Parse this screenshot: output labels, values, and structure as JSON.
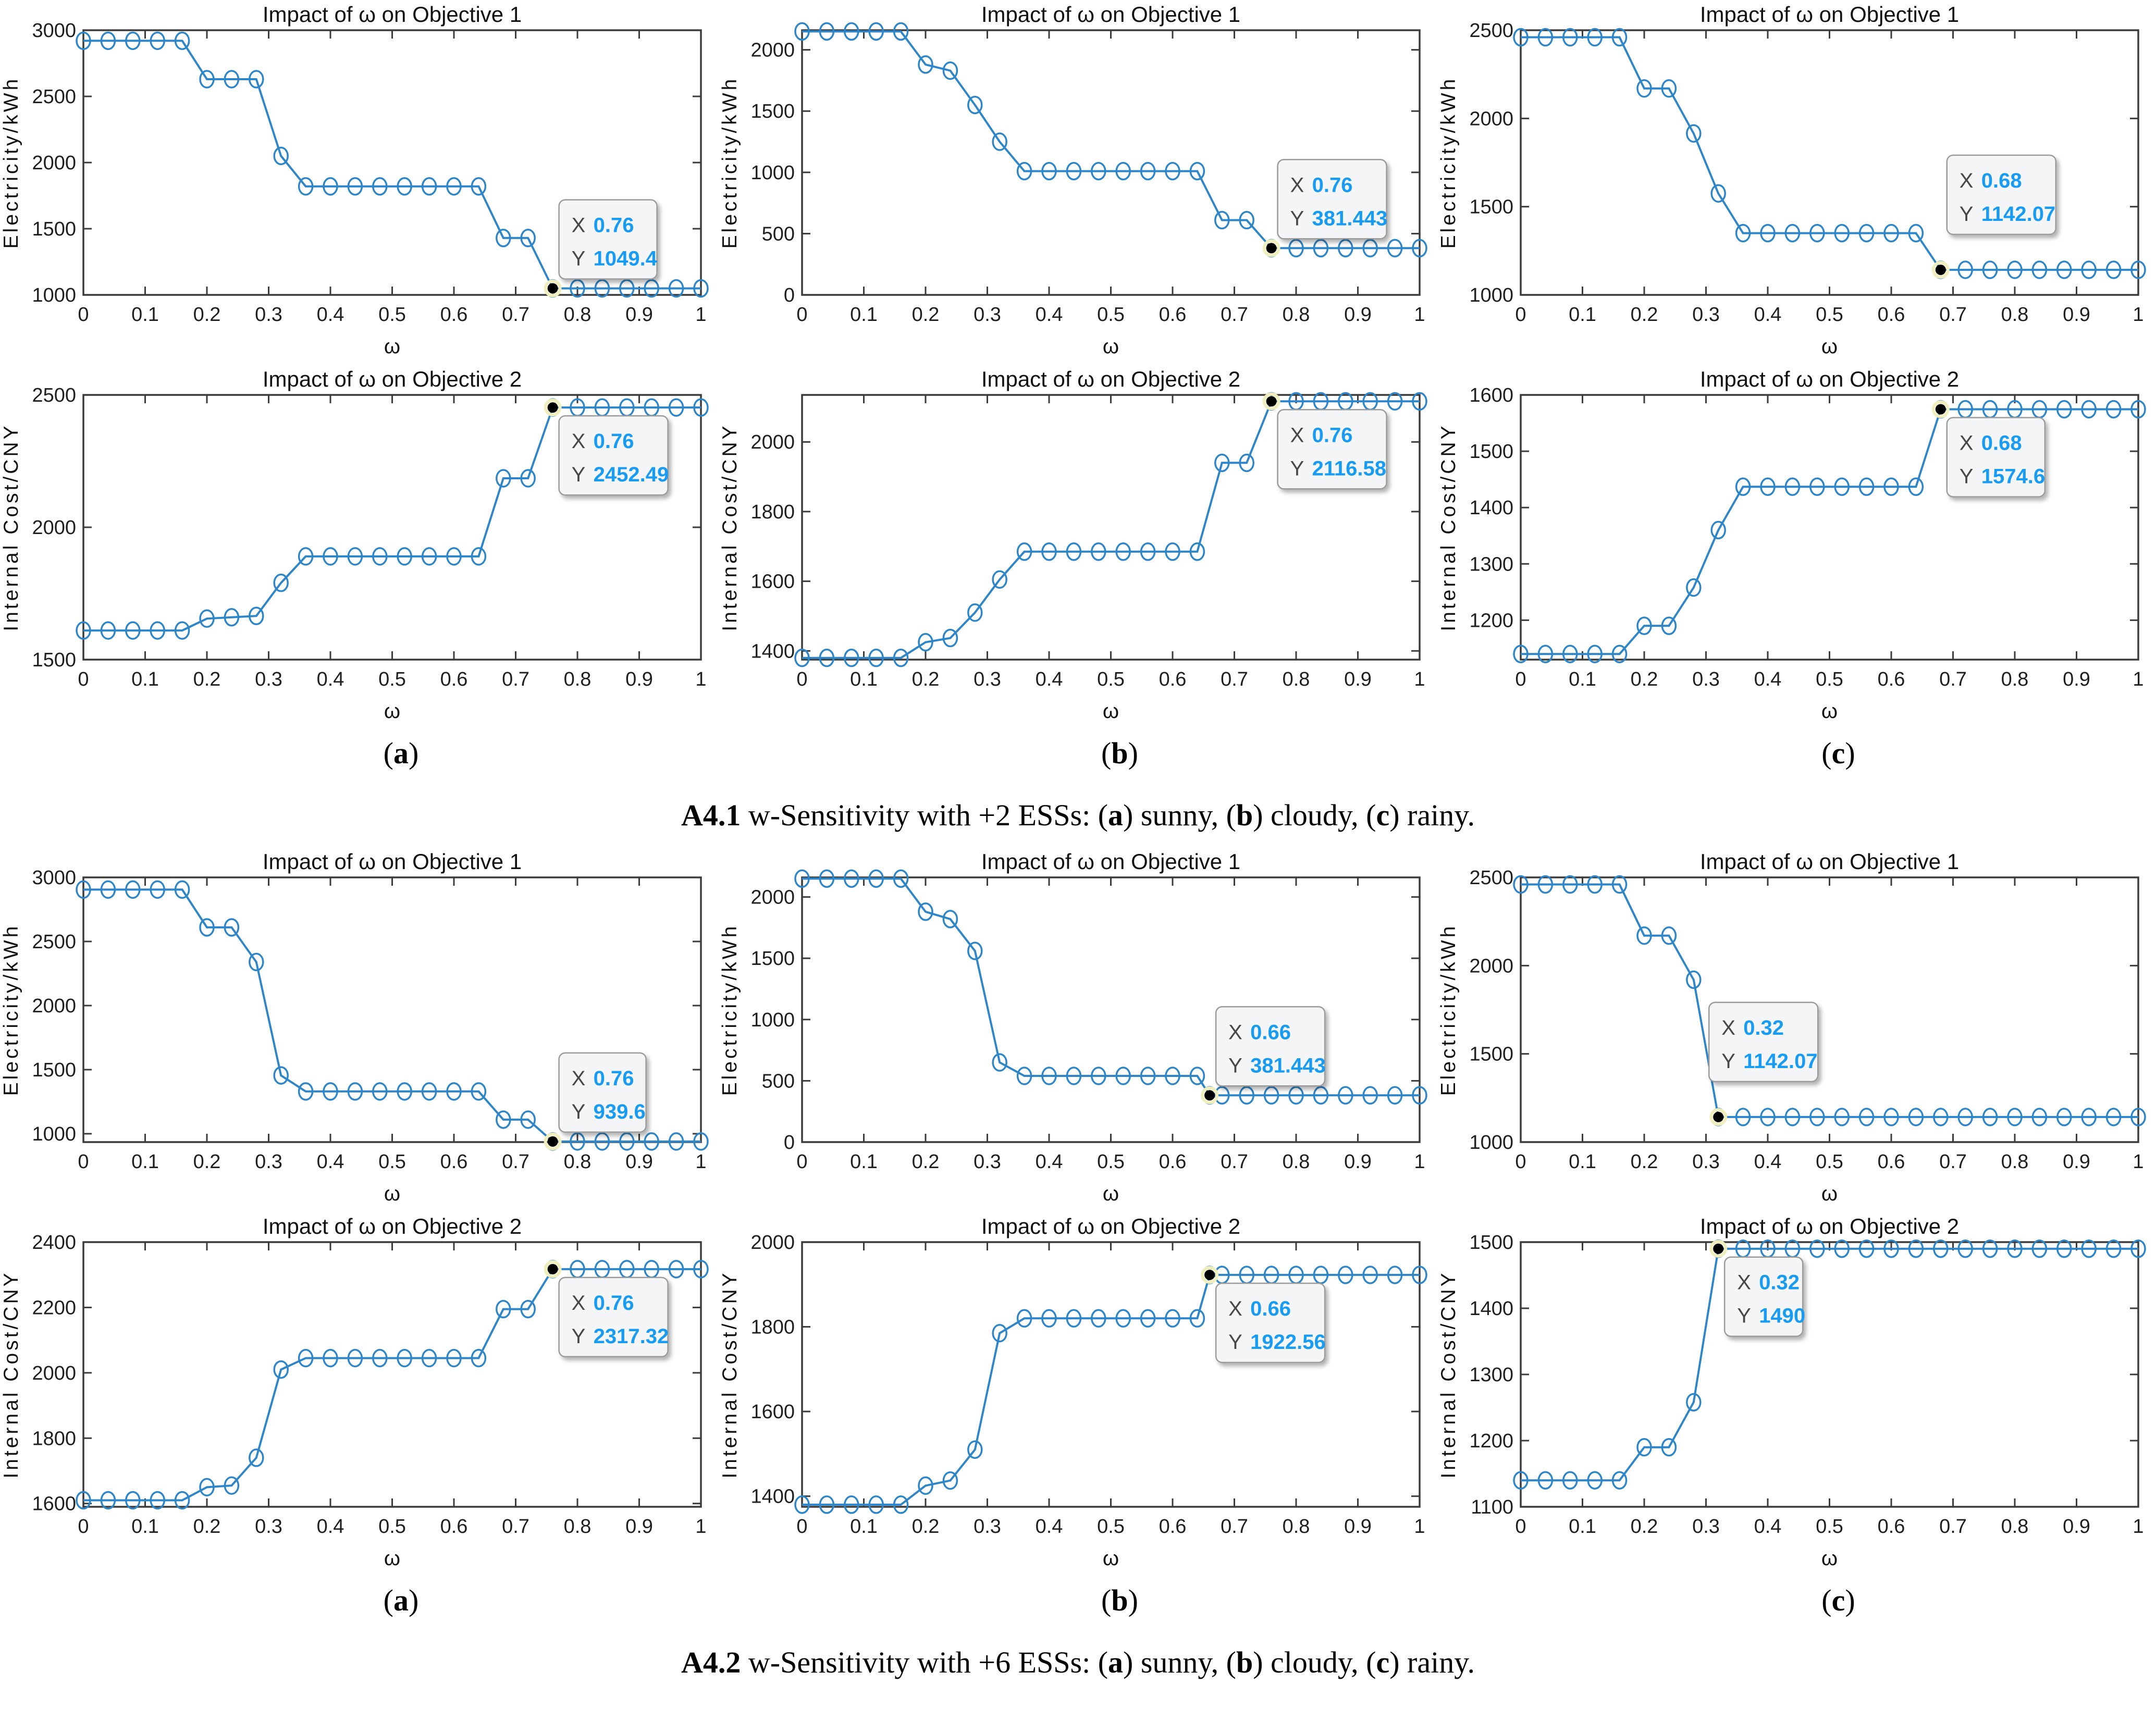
{
  "page": {
    "background": "#ffffff"
  },
  "colors": {
    "line": "#2E86C8",
    "axis": "#3b3b3b",
    "tick_text": "#1f1f1f",
    "title_text": "#111111",
    "tip_value": "#189BF2",
    "tip_label": "#474747",
    "tip_bg": "#f4f5f7",
    "tip_border": "#9b9b9b",
    "tip_anchor_dot": "#000000",
    "tip_anchor_halo": "#efeebc"
  },
  "axes_common": {
    "xlabel": "ω",
    "xticks": [
      0,
      0.1,
      0.2,
      0.3,
      0.4,
      0.5,
      0.6,
      0.7,
      0.8,
      0.9,
      1
    ],
    "xtick_labels": [
      "0",
      "0.1",
      "0.2",
      "0.3",
      "0.4",
      "0.5",
      "0.6",
      "0.7",
      "0.8",
      "0.9",
      "1"
    ],
    "xlim": [
      0,
      1
    ]
  },
  "groups": [
    {
      "name": "A4.1",
      "sublabels": [
        [
          {
            "t": "(",
            "b": false
          },
          {
            "t": "a",
            "b": true
          },
          {
            "t": ")",
            "b": false
          }
        ],
        [
          {
            "t": "(",
            "b": false
          },
          {
            "t": "b",
            "b": true
          },
          {
            "t": ")",
            "b": false
          }
        ],
        [
          {
            "t": "(",
            "b": false
          },
          {
            "t": "c",
            "b": true
          },
          {
            "t": ")",
            "b": false
          }
        ]
      ],
      "caption": [
        {
          "t": "A4.1",
          "b": true
        },
        {
          "t": " w-Sensitivity with +2 ESSs: (",
          "b": false
        },
        {
          "t": "a",
          "b": true
        },
        {
          "t": ") sunny, (",
          "b": false
        },
        {
          "t": "b",
          "b": true
        },
        {
          "t": ") cloudy, (",
          "b": false
        },
        {
          "t": "c",
          "b": true
        },
        {
          "t": ") rainy.",
          "b": false
        }
      ]
    },
    {
      "name": "A4.2",
      "sublabels": [
        [
          {
            "t": "(",
            "b": false
          },
          {
            "t": "a",
            "b": true
          },
          {
            "t": ")",
            "b": false
          }
        ],
        [
          {
            "t": "(",
            "b": false
          },
          {
            "t": "b",
            "b": true
          },
          {
            "t": ")",
            "b": false
          }
        ],
        [
          {
            "t": "(",
            "b": false
          },
          {
            "t": "c",
            "b": true
          },
          {
            "t": ")",
            "b": false
          }
        ]
      ],
      "caption": [
        {
          "t": "A4.2",
          "b": true
        },
        {
          "t": " w-Sensitivity with +6 ESSs: (",
          "b": false
        },
        {
          "t": "a",
          "b": true
        },
        {
          "t": ") sunny, (",
          "b": false
        },
        {
          "t": "b",
          "b": true
        },
        {
          "t": ") cloudy, (",
          "b": false
        },
        {
          "t": "c",
          "b": true
        },
        {
          "t": ") rainy.",
          "b": false
        }
      ]
    }
  ],
  "chart_data": [
    {
      "type": "line",
      "group": "A4.1",
      "panel": "a",
      "row": 1,
      "title": "Impact of ω on Objective 1",
      "ylabel": "Electricity/kWh",
      "xlabel": "ω",
      "ylim": [
        1000,
        3000
      ],
      "yticks": [
        1000,
        1500,
        2000,
        2500,
        3000
      ],
      "ytick_labels": [
        "1000",
        "1500",
        "2000",
        "2500",
        "3000"
      ],
      "x": [
        0,
        0.04,
        0.08,
        0.12,
        0.16,
        0.2,
        0.24,
        0.28,
        0.32,
        0.36,
        0.4,
        0.44,
        0.48,
        0.52,
        0.56,
        0.6,
        0.64,
        0.68,
        0.72,
        0.76,
        0.8,
        0.84,
        0.88,
        0.92,
        0.96,
        1
      ],
      "y": [
        2920,
        2920,
        2920,
        2920,
        2920,
        2630,
        2630,
        2630,
        2050,
        1820,
        1820,
        1820,
        1820,
        1820,
        1820,
        1820,
        1820,
        1430,
        1430,
        1049.4,
        1049.4,
        1049.4,
        1049.4,
        1049.4,
        1049.4,
        1049.4
      ],
      "tip": {
        "index": 19,
        "x_label": "0.76",
        "y_label": "1049.4",
        "placement": "ne"
      }
    },
    {
      "type": "line",
      "group": "A4.1",
      "panel": "a",
      "row": 2,
      "title": "Impact of ω on Objective 2",
      "ylabel": "Internal Cost/CNY",
      "xlabel": "ω",
      "ylim": [
        1500,
        2500
      ],
      "yticks": [
        1500,
        2000,
        2500
      ],
      "ytick_labels": [
        "1500",
        "2000",
        "2500"
      ],
      "x": [
        0,
        0.04,
        0.08,
        0.12,
        0.16,
        0.2,
        0.24,
        0.28,
        0.32,
        0.36,
        0.4,
        0.44,
        0.48,
        0.52,
        0.56,
        0.6,
        0.64,
        0.68,
        0.72,
        0.76,
        0.8,
        0.84,
        0.88,
        0.92,
        0.96,
        1
      ],
      "y": [
        1610,
        1610,
        1610,
        1610,
        1610,
        1655,
        1660,
        1665,
        1790,
        1890,
        1890,
        1890,
        1890,
        1890,
        1890,
        1890,
        1890,
        2185,
        2185,
        2452.49,
        2452.49,
        2452.49,
        2452.49,
        2452.49,
        2452.49,
        2452.49
      ],
      "tip": {
        "index": 19,
        "x_label": "0.76",
        "y_label": "2452.49",
        "placement": "se"
      }
    },
    {
      "type": "line",
      "group": "A4.1",
      "panel": "b",
      "row": 1,
      "title": "Impact of ω on Objective 1",
      "ylabel": "Electricity/kWh",
      "xlabel": "ω",
      "ylim": [
        0,
        2160
      ],
      "yticks": [
        0,
        500,
        1000,
        1500,
        2000
      ],
      "ytick_labels": [
        "0",
        "500",
        "1000",
        "1500",
        "2000"
      ],
      "x": [
        0,
        0.04,
        0.08,
        0.12,
        0.16,
        0.2,
        0.24,
        0.28,
        0.32,
        0.36,
        0.4,
        0.44,
        0.48,
        0.52,
        0.56,
        0.6,
        0.64,
        0.68,
        0.72,
        0.76,
        0.8,
        0.84,
        0.88,
        0.92,
        0.96,
        1
      ],
      "y": [
        2150,
        2150,
        2150,
        2150,
        2150,
        1880,
        1830,
        1550,
        1250,
        1010,
        1010,
        1010,
        1010,
        1010,
        1010,
        1010,
        1010,
        610,
        610,
        381.443,
        381.443,
        381.443,
        381.443,
        381.443,
        381.443,
        381.443
      ],
      "tip": {
        "index": 19,
        "x_label": "0.76",
        "y_label": "381.443",
        "placement": "ne"
      }
    },
    {
      "type": "line",
      "group": "A4.1",
      "panel": "b",
      "row": 2,
      "title": "Impact of ω on Objective 2",
      "ylabel": "Internal Cost/CNY",
      "xlabel": "ω",
      "ylim": [
        1375,
        2135
      ],
      "yticks": [
        1400,
        1600,
        1800,
        2000
      ],
      "ytick_labels": [
        "1400",
        "1600",
        "1800",
        "2000"
      ],
      "x": [
        0,
        0.04,
        0.08,
        0.12,
        0.16,
        0.2,
        0.24,
        0.28,
        0.32,
        0.36,
        0.4,
        0.44,
        0.48,
        0.52,
        0.56,
        0.6,
        0.64,
        0.68,
        0.72,
        0.76,
        0.8,
        0.84,
        0.88,
        0.92,
        0.96,
        1
      ],
      "y": [
        1380,
        1380,
        1380,
        1380,
        1380,
        1425,
        1437,
        1510,
        1605,
        1685,
        1685,
        1685,
        1685,
        1685,
        1685,
        1685,
        1685,
        1940,
        1940,
        2116.58,
        2116.58,
        2116.58,
        2116.58,
        2116.58,
        2116.58,
        2116.58
      ],
      "tip": {
        "index": 19,
        "x_label": "0.76",
        "y_label": "2116.58",
        "placement": "se"
      }
    },
    {
      "type": "line",
      "group": "A4.1",
      "panel": "c",
      "row": 1,
      "title": "Impact of ω on Objective 1",
      "ylabel": "Electricity/kWh",
      "xlabel": "ω",
      "ylim": [
        1000,
        2500
      ],
      "yticks": [
        1000,
        1500,
        2000,
        2500
      ],
      "ytick_labels": [
        "1000",
        "1500",
        "2000",
        "2500"
      ],
      "x": [
        0,
        0.04,
        0.08,
        0.12,
        0.16,
        0.2,
        0.24,
        0.28,
        0.32,
        0.36,
        0.4,
        0.44,
        0.48,
        0.52,
        0.56,
        0.6,
        0.64,
        0.68,
        0.72,
        0.76,
        0.8,
        0.84,
        0.88,
        0.92,
        0.96,
        1
      ],
      "y": [
        2460,
        2460,
        2460,
        2460,
        2460,
        2170,
        2170,
        1915,
        1575,
        1350,
        1350,
        1350,
        1350,
        1350,
        1350,
        1350,
        1350,
        1142.07,
        1142.07,
        1142.07,
        1142.07,
        1142.07,
        1142.07,
        1142.07,
        1142.07,
        1142.07
      ],
      "tip": {
        "index": 17,
        "x_label": "0.68",
        "y_label": "1142.07",
        "placement": "ne",
        "dy": -50
      }
    },
    {
      "type": "line",
      "group": "A4.1",
      "panel": "c",
      "row": 2,
      "title": "Impact of ω on Objective 2",
      "ylabel": "Internal Cost/CNY",
      "xlabel": "ω",
      "ylim": [
        1130,
        1600
      ],
      "yticks": [
        1200,
        1300,
        1400,
        1500,
        1600
      ],
      "ytick_labels": [
        "1200",
        "1300",
        "1400",
        "1500",
        "1600"
      ],
      "x": [
        0,
        0.04,
        0.08,
        0.12,
        0.16,
        0.2,
        0.24,
        0.28,
        0.32,
        0.36,
        0.4,
        0.44,
        0.48,
        0.52,
        0.56,
        0.6,
        0.64,
        0.68,
        0.72,
        0.76,
        0.8,
        0.84,
        0.88,
        0.92,
        0.96,
        1
      ],
      "y": [
        1140,
        1140,
        1140,
        1140,
        1140,
        1190,
        1190,
        1258,
        1360,
        1437,
        1437,
        1437,
        1437,
        1437,
        1437,
        1437,
        1437,
        1574.6,
        1574.6,
        1574.6,
        1574.6,
        1574.6,
        1574.6,
        1574.6,
        1574.6,
        1574.6
      ],
      "tip": {
        "index": 17,
        "x_label": "0.68",
        "y_label": "1574.6",
        "placement": "se"
      }
    },
    {
      "type": "line",
      "group": "A4.2",
      "panel": "a",
      "row": 1,
      "title": "Impact of ω on Objective 1",
      "ylabel": "Electricity/kWh",
      "xlabel": "ω",
      "ylim": [
        935,
        3000
      ],
      "yticks": [
        1000,
        1500,
        2000,
        2500,
        3000
      ],
      "ytick_labels": [
        "1000",
        "1500",
        "2000",
        "2500",
        "3000"
      ],
      "x": [
        0,
        0.04,
        0.08,
        0.12,
        0.16,
        0.2,
        0.24,
        0.28,
        0.32,
        0.36,
        0.4,
        0.44,
        0.48,
        0.52,
        0.56,
        0.6,
        0.64,
        0.68,
        0.72,
        0.76,
        0.8,
        0.84,
        0.88,
        0.92,
        0.96,
        1
      ],
      "y": [
        2905,
        2905,
        2905,
        2905,
        2905,
        2610,
        2610,
        2340,
        1455,
        1330,
        1330,
        1330,
        1330,
        1330,
        1330,
        1330,
        1330,
        1110,
        1110,
        939.6,
        939.6,
        939.6,
        939.6,
        939.6,
        939.6,
        939.6
      ],
      "tip": {
        "index": 19,
        "x_label": "0.76",
        "y_label": "939.6",
        "placement": "ne"
      }
    },
    {
      "type": "line",
      "group": "A4.2",
      "panel": "a",
      "row": 2,
      "title": "Impact of ω on Objective 2",
      "ylabel": "Internal Cost/CNY",
      "xlabel": "ω",
      "ylim": [
        1590,
        2400
      ],
      "yticks": [
        1600,
        1800,
        2000,
        2200,
        2400
      ],
      "ytick_labels": [
        "1600",
        "1800",
        "2000",
        "2200",
        "2400"
      ],
      "x": [
        0,
        0.04,
        0.08,
        0.12,
        0.16,
        0.2,
        0.24,
        0.28,
        0.32,
        0.36,
        0.4,
        0.44,
        0.48,
        0.52,
        0.56,
        0.6,
        0.64,
        0.68,
        0.72,
        0.76,
        0.8,
        0.84,
        0.88,
        0.92,
        0.96,
        1
      ],
      "y": [
        1610,
        1610,
        1610,
        1610,
        1610,
        1650,
        1655,
        1740,
        2010,
        2045,
        2045,
        2045,
        2045,
        2045,
        2045,
        2045,
        2045,
        2195,
        2195,
        2317.32,
        2317.32,
        2317.32,
        2317.32,
        2317.32,
        2317.32,
        2317.32
      ],
      "tip": {
        "index": 19,
        "x_label": "0.76",
        "y_label": "2317.32",
        "placement": "se"
      }
    },
    {
      "type": "line",
      "group": "A4.2",
      "panel": "b",
      "row": 1,
      "title": "Impact of ω on Objective 1",
      "ylabel": "Electricity/kWh",
      "xlabel": "ω",
      "ylim": [
        0,
        2160
      ],
      "yticks": [
        0,
        500,
        1000,
        1500,
        2000
      ],
      "ytick_labels": [
        "0",
        "500",
        "1000",
        "1500",
        "2000"
      ],
      "x": [
        0,
        0.04,
        0.08,
        0.12,
        0.16,
        0.2,
        0.24,
        0.28,
        0.32,
        0.36,
        0.4,
        0.44,
        0.48,
        0.52,
        0.56,
        0.6,
        0.64,
        0.66,
        0.68,
        0.72,
        0.76,
        0.8,
        0.84,
        0.88,
        0.92,
        0.96,
        1
      ],
      "y": [
        2150,
        2150,
        2150,
        2150,
        2150,
        1880,
        1820,
        1560,
        650,
        540,
        540,
        540,
        540,
        540,
        540,
        540,
        540,
        381.443,
        381.443,
        381.443,
        381.443,
        381.443,
        381.443,
        381.443,
        381.443,
        381.443,
        381.443
      ],
      "tip": {
        "index": 17,
        "x_label": "0.66",
        "y_label": "381.443",
        "placement": "ne"
      }
    },
    {
      "type": "line",
      "group": "A4.2",
      "panel": "b",
      "row": 2,
      "title": "Impact of ω on Objective 2",
      "ylabel": "Internal Cost/CNY",
      "xlabel": "ω",
      "ylim": [
        1375,
        2000
      ],
      "yticks": [
        1400,
        1600,
        1800,
        2000
      ],
      "ytick_labels": [
        "1400",
        "1600",
        "1800",
        "2000"
      ],
      "x": [
        0,
        0.04,
        0.08,
        0.12,
        0.16,
        0.2,
        0.24,
        0.28,
        0.32,
        0.36,
        0.4,
        0.44,
        0.48,
        0.52,
        0.56,
        0.6,
        0.64,
        0.66,
        0.68,
        0.72,
        0.76,
        0.8,
        0.84,
        0.88,
        0.92,
        0.96,
        1
      ],
      "y": [
        1380,
        1380,
        1380,
        1380,
        1380,
        1425,
        1437,
        1510,
        1785,
        1820,
        1820,
        1820,
        1820,
        1820,
        1820,
        1820,
        1820,
        1922.56,
        1922.56,
        1922.56,
        1922.56,
        1922.56,
        1922.56,
        1922.56,
        1922.56,
        1922.56,
        1922.56
      ],
      "tip": {
        "index": 17,
        "x_label": "0.66",
        "y_label": "1922.56",
        "placement": "se"
      }
    },
    {
      "type": "line",
      "group": "A4.2",
      "panel": "c",
      "row": 1,
      "title": "Impact of ω on Objective 1",
      "ylabel": "Electricity/kWh",
      "xlabel": "ω",
      "ylim": [
        1000,
        2500
      ],
      "yticks": [
        1000,
        1500,
        2000,
        2500
      ],
      "ytick_labels": [
        "1000",
        "1500",
        "2000",
        "2500"
      ],
      "x": [
        0,
        0.04,
        0.08,
        0.12,
        0.16,
        0.2,
        0.24,
        0.28,
        0.32,
        0.36,
        0.4,
        0.44,
        0.48,
        0.52,
        0.56,
        0.6,
        0.64,
        0.68,
        0.72,
        0.76,
        0.8,
        0.84,
        0.88,
        0.92,
        0.96,
        1
      ],
      "y": [
        2460,
        2460,
        2460,
        2460,
        2460,
        2170,
        2170,
        1920,
        1142.07,
        1142.07,
        1142.07,
        1142.07,
        1142.07,
        1142.07,
        1142.07,
        1142.07,
        1142.07,
        1142.07,
        1142.07,
        1142.07,
        1142.07,
        1142.07,
        1142.07,
        1142.07,
        1142.07,
        1142.07
      ],
      "tip": {
        "index": 8,
        "x_label": "0.32",
        "y_label": "1142.07",
        "placement": "ne",
        "dx": -30,
        "dy": -50
      }
    },
    {
      "type": "line",
      "group": "A4.2",
      "panel": "c",
      "row": 2,
      "title": "Impact of ω on Objective 2",
      "ylabel": "Internal Cost/CNY",
      "xlabel": "ω",
      "ylim": [
        1100,
        1500
      ],
      "yticks": [
        1100,
        1200,
        1300,
        1400,
        1500
      ],
      "ytick_labels": [
        "1100",
        "1200",
        "1300",
        "1400",
        "1500"
      ],
      "x": [
        0,
        0.04,
        0.08,
        0.12,
        0.16,
        0.2,
        0.24,
        0.28,
        0.32,
        0.36,
        0.4,
        0.44,
        0.48,
        0.52,
        0.56,
        0.6,
        0.64,
        0.68,
        0.72,
        0.76,
        0.8,
        0.84,
        0.88,
        0.92,
        0.96,
        1
      ],
      "y": [
        1140,
        1140,
        1140,
        1140,
        1140,
        1190,
        1190,
        1258,
        1490,
        1490,
        1490,
        1490,
        1490,
        1490,
        1490,
        1490,
        1490,
        1490,
        1490,
        1490,
        1490,
        1490,
        1490,
        1490,
        1490,
        1490
      ],
      "tip": {
        "index": 8,
        "x_label": "0.32",
        "y_label": "1490",
        "placement": "se"
      }
    }
  ]
}
